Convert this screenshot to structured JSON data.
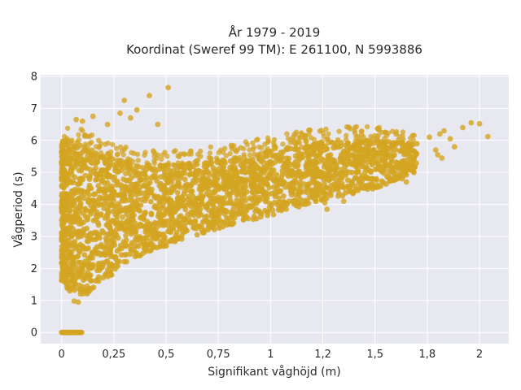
{
  "chart_data": {
    "type": "scatter",
    "title": "År 1979 - 2019",
    "subtitle": "Koordinat (Sweref 99 TM): E 261100, N 5993886",
    "xlabel": "Signifikant våghöjd (m)",
    "ylabel": "Vågperiod (s)",
    "xlim": [
      -0.1,
      2.14
    ],
    "ylim": [
      -0.35,
      8.05
    ],
    "xticks": [
      0,
      0.25,
      0.5,
      0.75,
      1,
      1.25,
      1.5,
      1.75,
      2
    ],
    "xtick_labels": [
      "0",
      "0,25",
      "0,5",
      "0,75",
      "1",
      "1,2",
      "1,5",
      "1,8",
      "2"
    ],
    "yticks": [
      0,
      1,
      2,
      3,
      4,
      5,
      6,
      7,
      8
    ],
    "ytick_labels": [
      "0",
      "1",
      "2",
      "3",
      "4",
      "5",
      "6",
      "7",
      "8"
    ],
    "grid": true,
    "marker_color": "#d4a421",
    "plot_background": "#e8e8f0",
    "dense_band": [
      {
        "x": 0.0,
        "ymin": 1.6,
        "ymax": 6.0
      },
      {
        "x": 0.05,
        "ymin": 1.2,
        "ymax": 6.0
      },
      {
        "x": 0.1,
        "ymin": 1.05,
        "ymax": 5.9
      },
      {
        "x": 0.2,
        "ymin": 1.6,
        "ymax": 5.5
      },
      {
        "x": 0.3,
        "ymin": 2.1,
        "ymax": 5.35
      },
      {
        "x": 0.4,
        "ymin": 2.45,
        "ymax": 5.25
      },
      {
        "x": 0.5,
        "ymin": 2.7,
        "ymax": 5.25
      },
      {
        "x": 0.6,
        "ymin": 2.95,
        "ymax": 5.3
      },
      {
        "x": 0.7,
        "ymin": 3.15,
        "ymax": 5.35
      },
      {
        "x": 0.8,
        "ymin": 3.35,
        "ymax": 5.45
      },
      {
        "x": 0.9,
        "ymin": 3.5,
        "ymax": 5.55
      },
      {
        "x": 1.0,
        "ymin": 3.65,
        "ymax": 5.7
      },
      {
        "x": 1.1,
        "ymin": 3.85,
        "ymax": 5.8
      },
      {
        "x": 1.2,
        "ymin": 4.05,
        "ymax": 5.9
      },
      {
        "x": 1.3,
        "ymin": 4.2,
        "ymax": 5.95
      },
      {
        "x": 1.4,
        "ymin": 4.35,
        "ymax": 6.0
      },
      {
        "x": 1.5,
        "ymin": 4.5,
        "ymax": 6.0
      },
      {
        "x": 1.6,
        "ymin": 4.75,
        "ymax": 5.95
      },
      {
        "x": 1.7,
        "ymin": 5.0,
        "ymax": 5.9
      }
    ],
    "zero_period_points": {
      "xmin": 0.0,
      "xmax": 0.1,
      "y": 0
    },
    "outliers": [
      {
        "x": 0.51,
        "y": 7.65
      },
      {
        "x": 0.42,
        "y": 7.4
      },
      {
        "x": 0.3,
        "y": 7.25
      },
      {
        "x": 0.36,
        "y": 6.95
      },
      {
        "x": 0.28,
        "y": 6.85
      },
      {
        "x": 0.33,
        "y": 6.7
      },
      {
        "x": 0.15,
        "y": 6.75
      },
      {
        "x": 0.07,
        "y": 6.65
      },
      {
        "x": 0.1,
        "y": 6.6
      },
      {
        "x": 0.46,
        "y": 6.5
      },
      {
        "x": 0.22,
        "y": 6.5
      },
      {
        "x": 1.96,
        "y": 6.55
      },
      {
        "x": 2.0,
        "y": 6.52
      },
      {
        "x": 1.92,
        "y": 6.4
      },
      {
        "x": 2.04,
        "y": 6.12
      },
      {
        "x": 1.81,
        "y": 6.2
      },
      {
        "x": 1.83,
        "y": 6.3
      },
      {
        "x": 1.86,
        "y": 6.05
      },
      {
        "x": 1.88,
        "y": 5.8
      },
      {
        "x": 1.76,
        "y": 6.1
      },
      {
        "x": 1.8,
        "y": 5.55
      },
      {
        "x": 1.82,
        "y": 5.45
      },
      {
        "x": 1.79,
        "y": 5.7
      },
      {
        "x": 1.55,
        "y": 6.25
      },
      {
        "x": 1.6,
        "y": 6.2
      },
      {
        "x": 1.68,
        "y": 6.15
      },
      {
        "x": 1.63,
        "y": 4.8
      },
      {
        "x": 1.65,
        "y": 4.7
      },
      {
        "x": 1.59,
        "y": 4.95
      },
      {
        "x": 1.26,
        "y": 4.05
      },
      {
        "x": 1.27,
        "y": 3.85
      },
      {
        "x": 1.35,
        "y": 4.1
      },
      {
        "x": 0.06,
        "y": 0.98
      },
      {
        "x": 0.08,
        "y": 0.95
      }
    ]
  }
}
